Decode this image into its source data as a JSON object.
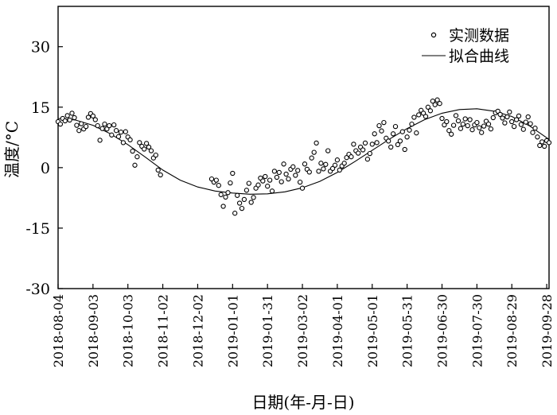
{
  "chart_data": {
    "type": "scatter",
    "xlabel": "日期(年-月-日)",
    "ylabel": "温度/°C",
    "ylim": [
      -30,
      40
    ],
    "xlim": [
      "2018-08-04",
      "2019-09-30"
    ],
    "x_ticks": [
      "2018-08-04",
      "2018-09-03",
      "2018-10-03",
      "2018-11-02",
      "2018-12-02",
      "2019-01-01",
      "2019-01-31",
      "2019-03-02",
      "2019-04-01",
      "2019-05-01",
      "2019-05-31",
      "2019-06-30",
      "2019-07-30",
      "2019-08-29",
      "2019-09-28"
    ],
    "y_ticks": [
      -30,
      -15,
      0,
      15,
      30
    ],
    "legend_position": "top-right",
    "grid": false,
    "series": [
      {
        "name": "实测数据",
        "style": "hollow-circle",
        "points": [
          [
            "2018-08-04",
            11.4
          ],
          [
            "2018-08-06",
            10.8
          ],
          [
            "2018-08-08",
            12.2
          ],
          [
            "2018-08-10",
            11.6
          ],
          [
            "2018-08-12",
            12.9
          ],
          [
            "2018-08-14",
            11.8
          ],
          [
            "2018-08-16",
            13.5
          ],
          [
            "2018-08-18",
            12.4
          ],
          [
            "2018-08-20",
            10.5
          ],
          [
            "2018-08-22",
            9.2
          ],
          [
            "2018-08-24",
            10.9
          ],
          [
            "2018-08-26",
            9.6
          ],
          [
            "2018-08-28",
            10.2
          ],
          [
            "2018-08-30",
            12.5
          ],
          [
            "2018-09-01",
            13.4
          ],
          [
            "2018-09-03",
            12.8
          ],
          [
            "2018-09-05",
            11.9
          ],
          [
            "2018-09-07",
            10.4
          ],
          [
            "2018-09-09",
            6.8
          ],
          [
            "2018-09-11",
            9.7
          ],
          [
            "2018-09-13",
            10.8
          ],
          [
            "2018-09-15",
            9.6
          ],
          [
            "2018-09-17",
            10.4
          ],
          [
            "2018-09-19",
            8.1
          ],
          [
            "2018-09-21",
            10.6
          ],
          [
            "2018-09-23",
            9.2
          ],
          [
            "2018-09-25",
            7.7
          ],
          [
            "2018-09-27",
            8.8
          ],
          [
            "2018-09-29",
            6.2
          ],
          [
            "2018-10-01",
            8.9
          ],
          [
            "2018-10-03",
            7.6
          ],
          [
            "2018-10-05",
            6.9
          ],
          [
            "2018-10-07",
            4.1
          ],
          [
            "2018-10-09",
            0.6
          ],
          [
            "2018-10-11",
            2.7
          ],
          [
            "2018-10-13",
            6.2
          ],
          [
            "2018-10-15",
            5.3
          ],
          [
            "2018-10-17",
            4.6
          ],
          [
            "2018-10-19",
            6.0
          ],
          [
            "2018-10-21",
            5.1
          ],
          [
            "2018-10-23",
            4.2
          ],
          [
            "2018-10-25",
            2.4
          ],
          [
            "2018-10-27",
            3.1
          ],
          [
            "2018-10-29",
            -0.6
          ],
          [
            "2018-10-31",
            -1.8
          ],
          [
            "2018-12-14",
            -2.8
          ],
          [
            "2018-12-16",
            -3.6
          ],
          [
            "2018-12-18",
            -3.1
          ],
          [
            "2018-12-20",
            -4.4
          ],
          [
            "2018-12-22",
            -6.7
          ],
          [
            "2018-12-24",
            -9.6
          ],
          [
            "2018-12-26",
            -7.3
          ],
          [
            "2018-12-28",
            -6.2
          ],
          [
            "2018-12-30",
            -3.8
          ],
          [
            "2019-01-01",
            -1.4
          ],
          [
            "2019-01-03",
            -11.3
          ],
          [
            "2019-01-05",
            -6.9
          ],
          [
            "2019-01-07",
            -8.8
          ],
          [
            "2019-01-09",
            -10.1
          ],
          [
            "2019-01-11",
            -7.9
          ],
          [
            "2019-01-13",
            -5.6
          ],
          [
            "2019-01-15",
            -3.9
          ],
          [
            "2019-01-17",
            -8.6
          ],
          [
            "2019-01-19",
            -7.4
          ],
          [
            "2019-01-21",
            -5.1
          ],
          [
            "2019-01-23",
            -4.3
          ],
          [
            "2019-01-25",
            -2.6
          ],
          [
            "2019-01-27",
            -3.3
          ],
          [
            "2019-01-29",
            -2.2
          ],
          [
            "2019-01-31",
            -4.6
          ],
          [
            "2019-02-02",
            -3.1
          ],
          [
            "2019-02-04",
            -5.8
          ],
          [
            "2019-02-06",
            -0.9
          ],
          [
            "2019-02-08",
            -2.4
          ],
          [
            "2019-02-10",
            -1.2
          ],
          [
            "2019-02-12",
            -3.5
          ],
          [
            "2019-02-14",
            0.9
          ],
          [
            "2019-02-16",
            -1.6
          ],
          [
            "2019-02-18",
            -2.8
          ],
          [
            "2019-02-20",
            -0.4
          ],
          [
            "2019-02-22",
            0.2
          ],
          [
            "2019-02-24",
            -1.9
          ],
          [
            "2019-02-26",
            -0.7
          ],
          [
            "2019-02-28",
            -3.6
          ],
          [
            "2019-03-02",
            -5.1
          ],
          [
            "2019-03-04",
            0.9
          ],
          [
            "2019-03-06",
            -0.4
          ],
          [
            "2019-03-08",
            -1.1
          ],
          [
            "2019-03-10",
            2.4
          ],
          [
            "2019-03-12",
            3.8
          ],
          [
            "2019-03-14",
            6.1
          ],
          [
            "2019-03-16",
            -0.9
          ],
          [
            "2019-03-18",
            1.1
          ],
          [
            "2019-03-20",
            -0.3
          ],
          [
            "2019-03-22",
            0.8
          ],
          [
            "2019-03-24",
            4.2
          ],
          [
            "2019-03-26",
            -0.9
          ],
          [
            "2019-03-28",
            -0.2
          ],
          [
            "2019-03-30",
            0.6
          ],
          [
            "2019-04-01",
            1.9
          ],
          [
            "2019-04-03",
            -0.6
          ],
          [
            "2019-04-05",
            0.4
          ],
          [
            "2019-04-07",
            1.1
          ],
          [
            "2019-04-09",
            2.5
          ],
          [
            "2019-04-11",
            3.3
          ],
          [
            "2019-04-13",
            2.7
          ],
          [
            "2019-04-15",
            5.8
          ],
          [
            "2019-04-17",
            4.2
          ],
          [
            "2019-04-19",
            3.6
          ],
          [
            "2019-04-21",
            5.1
          ],
          [
            "2019-04-23",
            4.4
          ],
          [
            "2019-04-25",
            6.1
          ],
          [
            "2019-04-27",
            2.1
          ],
          [
            "2019-04-29",
            3.5
          ],
          [
            "2019-05-01",
            5.8
          ],
          [
            "2019-05-03",
            8.4
          ],
          [
            "2019-05-05",
            6.2
          ],
          [
            "2019-05-07",
            10.4
          ],
          [
            "2019-05-09",
            9.1
          ],
          [
            "2019-05-11",
            11.2
          ],
          [
            "2019-05-13",
            7.3
          ],
          [
            "2019-05-15",
            6.6
          ],
          [
            "2019-05-17",
            5.1
          ],
          [
            "2019-05-19",
            8.4
          ],
          [
            "2019-05-21",
            10.2
          ],
          [
            "2019-05-23",
            5.7
          ],
          [
            "2019-05-25",
            6.6
          ],
          [
            "2019-05-27",
            8.9
          ],
          [
            "2019-05-29",
            4.5
          ],
          [
            "2019-05-31",
            7.6
          ],
          [
            "2019-06-02",
            9.3
          ],
          [
            "2019-06-04",
            10.8
          ],
          [
            "2019-06-06",
            12.5
          ],
          [
            "2019-06-08",
            8.6
          ],
          [
            "2019-06-10",
            13.1
          ],
          [
            "2019-06-12",
            14.2
          ],
          [
            "2019-06-14",
            13.5
          ],
          [
            "2019-06-16",
            12.7
          ],
          [
            "2019-06-18",
            15.0
          ],
          [
            "2019-06-20",
            14.1
          ],
          [
            "2019-06-22",
            16.5
          ],
          [
            "2019-06-24",
            15.6
          ],
          [
            "2019-06-26",
            16.8
          ],
          [
            "2019-06-28",
            15.9
          ],
          [
            "2019-06-30",
            12.2
          ],
          [
            "2019-07-02",
            10.6
          ],
          [
            "2019-07-04",
            11.4
          ],
          [
            "2019-07-06",
            9.2
          ],
          [
            "2019-07-08",
            8.3
          ],
          [
            "2019-07-10",
            10.5
          ],
          [
            "2019-07-12",
            12.9
          ],
          [
            "2019-07-14",
            11.6
          ],
          [
            "2019-07-16",
            9.7
          ],
          [
            "2019-07-18",
            10.8
          ],
          [
            "2019-07-20",
            12.1
          ],
          [
            "2019-07-22",
            10.4
          ],
          [
            "2019-07-24",
            11.9
          ],
          [
            "2019-07-26",
            9.4
          ],
          [
            "2019-07-28",
            10.6
          ],
          [
            "2019-07-30",
            11.2
          ],
          [
            "2019-08-01",
            9.9
          ],
          [
            "2019-08-03",
            8.7
          ],
          [
            "2019-08-05",
            10.3
          ],
          [
            "2019-08-07",
            11.5
          ],
          [
            "2019-08-09",
            10.8
          ],
          [
            "2019-08-11",
            9.6
          ],
          [
            "2019-08-13",
            12.4
          ],
          [
            "2019-08-15",
            13.6
          ],
          [
            "2019-08-17",
            14.0
          ],
          [
            "2019-08-19",
            13.2
          ],
          [
            "2019-08-21",
            12.3
          ],
          [
            "2019-08-23",
            11.1
          ],
          [
            "2019-08-25",
            12.6
          ],
          [
            "2019-08-27",
            13.8
          ],
          [
            "2019-08-29",
            11.4
          ],
          [
            "2019-08-31",
            10.2
          ],
          [
            "2019-09-02",
            11.9
          ],
          [
            "2019-09-04",
            12.8
          ],
          [
            "2019-09-06",
            10.7
          ],
          [
            "2019-09-08",
            9.5
          ],
          [
            "2019-09-10",
            11.3
          ],
          [
            "2019-09-12",
            12.6
          ],
          [
            "2019-09-14",
            10.9
          ],
          [
            "2019-09-16",
            8.7
          ],
          [
            "2019-09-18",
            9.8
          ],
          [
            "2019-09-20",
            7.6
          ],
          [
            "2019-09-22",
            5.5
          ],
          [
            "2019-09-24",
            6.4
          ],
          [
            "2019-09-26",
            5.3
          ],
          [
            "2019-09-28",
            6.7
          ],
          [
            "2019-09-30",
            6.2
          ]
        ]
      },
      {
        "name": "拟合曲线",
        "style": "line",
        "points": [
          [
            "2018-08-04",
            12.2
          ],
          [
            "2018-08-19",
            11.8
          ],
          [
            "2018-09-03",
            10.5
          ],
          [
            "2018-09-18",
            8.4
          ],
          [
            "2018-10-03",
            5.7
          ],
          [
            "2018-10-18",
            2.6
          ],
          [
            "2018-11-02",
            -0.6
          ],
          [
            "2018-11-17",
            -3.1
          ],
          [
            "2018-12-02",
            -4.8
          ],
          [
            "2018-12-17",
            -5.8
          ],
          [
            "2019-01-01",
            -6.3
          ],
          [
            "2019-01-16",
            -6.6
          ],
          [
            "2019-01-31",
            -6.5
          ],
          [
            "2019-02-15",
            -6.0
          ],
          [
            "2019-03-02",
            -5.0
          ],
          [
            "2019-03-17",
            -3.4
          ],
          [
            "2019-04-01",
            -1.2
          ],
          [
            "2019-04-16",
            1.5
          ],
          [
            "2019-05-01",
            4.3
          ],
          [
            "2019-05-16",
            7.1
          ],
          [
            "2019-05-31",
            9.7
          ],
          [
            "2019-06-15",
            11.9
          ],
          [
            "2019-06-30",
            13.5
          ],
          [
            "2019-07-15",
            14.4
          ],
          [
            "2019-07-30",
            14.6
          ],
          [
            "2019-08-14",
            14.0
          ],
          [
            "2019-08-29",
            12.7
          ],
          [
            "2019-09-13",
            10.4
          ],
          [
            "2019-09-28",
            7.4
          ],
          [
            "2019-09-30",
            7.0
          ]
        ]
      }
    ]
  }
}
